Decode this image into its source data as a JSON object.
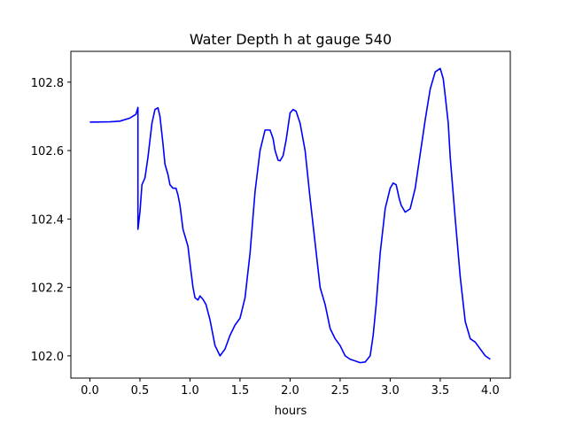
{
  "chart_data": {
    "type": "line",
    "title": "Water Depth h at gauge 540",
    "xlabel": "hours",
    "ylabel": "",
    "xlim": [
      -0.19,
      4.2
    ],
    "ylim": [
      101.935,
      102.89
    ],
    "xticks": [
      0.0,
      0.5,
      1.0,
      1.5,
      2.0,
      2.5,
      3.0,
      3.5,
      4.0
    ],
    "xtick_labels": [
      "0.0",
      "0.5",
      "1.0",
      "1.5",
      "2.0",
      "2.5",
      "3.0",
      "3.5",
      "4.0"
    ],
    "yticks": [
      102.0,
      102.2,
      102.4,
      102.6,
      102.8
    ],
    "ytick_labels": [
      "102.0",
      "102.2",
      "102.4",
      "102.6",
      "102.8"
    ],
    "grid": false,
    "series": [
      {
        "color": "#0000ff",
        "x": [
          0.0,
          0.2,
          0.3,
          0.4,
          0.46,
          0.48,
          0.48,
          0.5,
          0.52,
          0.55,
          0.58,
          0.62,
          0.65,
          0.68,
          0.7,
          0.73,
          0.75,
          0.78,
          0.8,
          0.83,
          0.86,
          0.88,
          0.9,
          0.93,
          0.95,
          0.98,
          1.0,
          1.03,
          1.05,
          1.08,
          1.1,
          1.13,
          1.16,
          1.2,
          1.25,
          1.3,
          1.35,
          1.4,
          1.45,
          1.5,
          1.55,
          1.6,
          1.65,
          1.7,
          1.75,
          1.8,
          1.83,
          1.85,
          1.88,
          1.9,
          1.93,
          1.96,
          2.0,
          2.03,
          2.06,
          2.1,
          2.15,
          2.2,
          2.25,
          2.3,
          2.35,
          2.4,
          2.45,
          2.5,
          2.55,
          2.6,
          2.65,
          2.7,
          2.75,
          2.8,
          2.83,
          2.86,
          2.9,
          2.95,
          3.0,
          3.03,
          3.06,
          3.09,
          3.11,
          3.15,
          3.2,
          3.25,
          3.3,
          3.35,
          3.4,
          3.45,
          3.5,
          3.53,
          3.55,
          3.58,
          3.6,
          3.65,
          3.7,
          3.75,
          3.8,
          3.85,
          3.9,
          3.95,
          4.0
        ],
        "y": [
          102.683,
          102.684,
          102.686,
          102.695,
          102.706,
          102.726,
          102.37,
          102.42,
          102.5,
          102.52,
          102.58,
          102.68,
          102.72,
          102.725,
          102.7,
          102.62,
          102.56,
          102.53,
          102.5,
          102.49,
          102.49,
          102.47,
          102.44,
          102.37,
          102.35,
          102.32,
          102.27,
          102.2,
          102.17,
          102.163,
          102.175,
          102.165,
          102.15,
          102.105,
          102.03,
          102.0,
          102.02,
          102.06,
          102.09,
          102.11,
          102.17,
          102.3,
          102.48,
          102.6,
          102.66,
          102.66,
          102.635,
          102.6,
          102.572,
          102.57,
          102.585,
          102.63,
          102.71,
          102.72,
          102.715,
          102.68,
          102.6,
          102.46,
          102.33,
          102.2,
          102.15,
          102.08,
          102.05,
          102.03,
          102.0,
          101.99,
          101.985,
          101.98,
          101.982,
          102.0,
          102.06,
          102.15,
          102.3,
          102.43,
          102.49,
          102.505,
          102.5,
          102.46,
          102.44,
          102.42,
          102.43,
          102.49,
          102.59,
          102.69,
          102.78,
          102.83,
          102.84,
          102.81,
          102.76,
          102.68,
          102.58,
          102.4,
          102.23,
          102.1,
          102.05,
          102.04,
          102.02,
          102.0,
          101.99
        ]
      }
    ]
  }
}
